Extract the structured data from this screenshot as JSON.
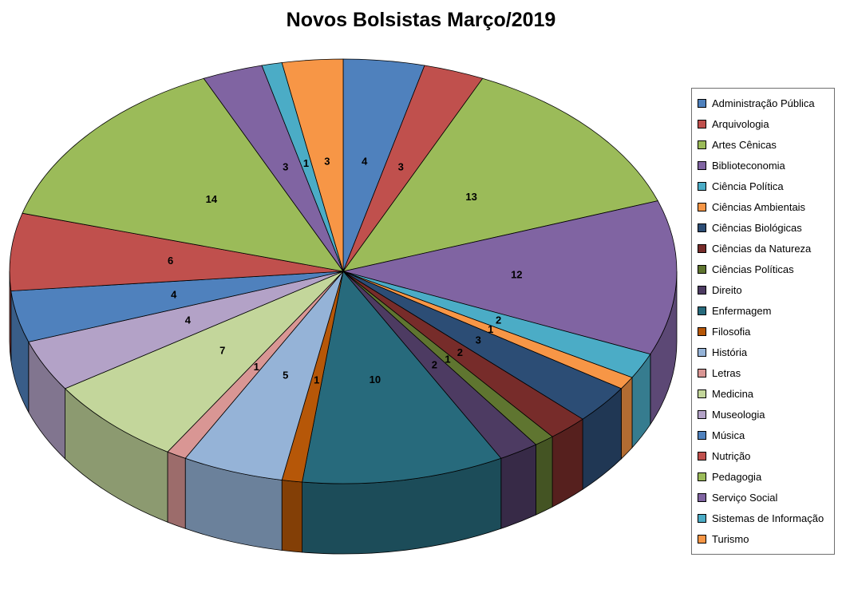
{
  "chart_data": {
    "type": "pie",
    "style": "3d",
    "title": "Novos Bolsistas Março/2019",
    "legend_position": "right",
    "data_labels": "value",
    "label_color": "#000000",
    "background": "#FFFFFF",
    "total": 102,
    "start_angle_deg": 0,
    "direction": "clockwise",
    "categories": [
      "Administração Pública",
      "Arquivologia",
      "Artes Cênicas",
      "Biblioteconomia",
      "Ciência Política",
      "Ciências Ambientais",
      "Ciências Biológicas",
      "Ciências da Natureza",
      "Ciências Políticas",
      "Direito",
      "Enfermagem",
      "Filosofia",
      "História",
      "Letras",
      "Medicina",
      "Museologia",
      "Música",
      "Nutrição",
      "Pedagogia",
      "Serviço Social",
      "Sistemas de Informação",
      "Turismo"
    ],
    "values": [
      4,
      3,
      13,
      12,
      2,
      1,
      3,
      2,
      1,
      2,
      10,
      1,
      5,
      1,
      7,
      4,
      4,
      6,
      14,
      3,
      1,
      3
    ],
    "colors": [
      "#4F81BD",
      "#C0504D",
      "#9BBB59",
      "#8064A2",
      "#4BACC6",
      "#F79646",
      "#2C4D75",
      "#772C2A",
      "#5F7530",
      "#4D3B62",
      "#276A7C",
      "#B65708",
      "#95B3D7",
      "#D99694",
      "#C3D69B",
      "#B3A2C7",
      "#4F81BD",
      "#C0504D",
      "#9BBB59",
      "#8064A2",
      "#4BACC6",
      "#F79646"
    ]
  }
}
